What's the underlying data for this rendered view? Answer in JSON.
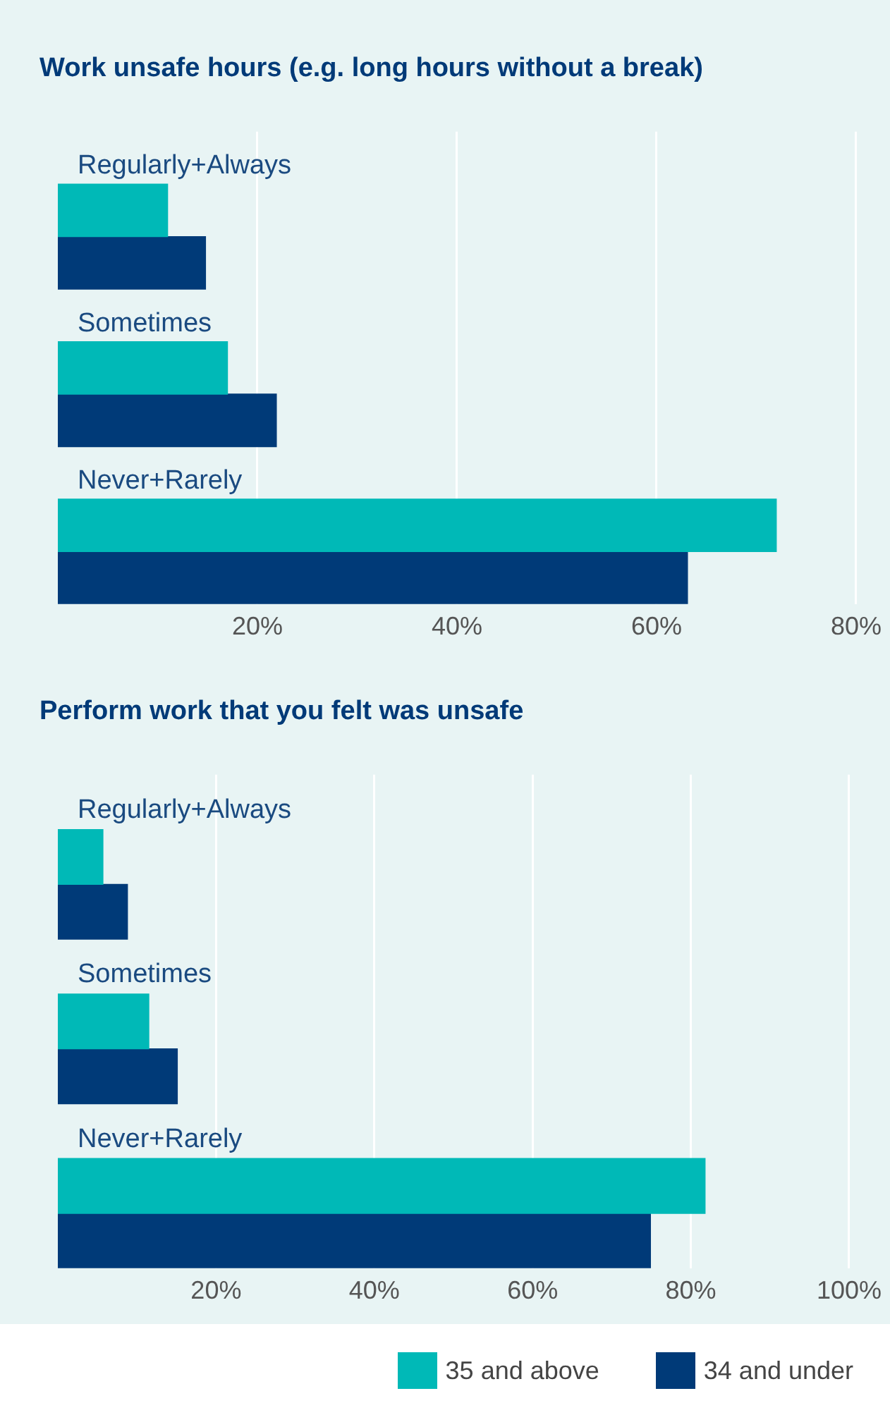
{
  "chart_data": [
    {
      "type": "bar",
      "orientation": "horizontal",
      "title": "Work unsafe hours (e.g. long hours without a break)",
      "categories": [
        "Regularly+Always",
        "Sometimes",
        "Never+Rarely"
      ],
      "series": [
        {
          "color": "#00b9b7",
          "values": [
            11,
            17,
            72
          ]
        },
        {
          "color": "#003a78",
          "values": [
            14.8,
            21.9,
            63.1
          ]
        }
      ],
      "xlim": [
        0,
        80
      ],
      "xticks": [
        {
          "value": 20,
          "label": "20%"
        },
        {
          "value": 40,
          "label": "40%"
        },
        {
          "value": 60,
          "label": "60%"
        },
        {
          "value": 80,
          "label": "80%"
        }
      ],
      "grid": "x"
    },
    {
      "type": "bar",
      "orientation": "horizontal",
      "title": "Perform work that you felt was unsafe",
      "categories": [
        "Regularly+Always",
        "Sometimes",
        "Never+Rarely"
      ],
      "series": [
        {
          "name": "35 and above",
          "color": "#00b9b7",
          "values": [
            5.7,
            11.5,
            81.8
          ]
        },
        {
          "name": "34 and under",
          "color": "#003a78",
          "values": [
            8.8,
            15.1,
            74.9
          ]
        }
      ],
      "xlim": [
        0,
        100
      ],
      "xticks": [
        {
          "value": 20,
          "label": "20%"
        },
        {
          "value": 40,
          "label": "40%"
        },
        {
          "value": 60,
          "label": "60%"
        },
        {
          "value": 80,
          "label": "80%"
        },
        {
          "value": 100,
          "label": "100%"
        }
      ],
      "grid": "x",
      "legend": "bottom"
    }
  ]
}
